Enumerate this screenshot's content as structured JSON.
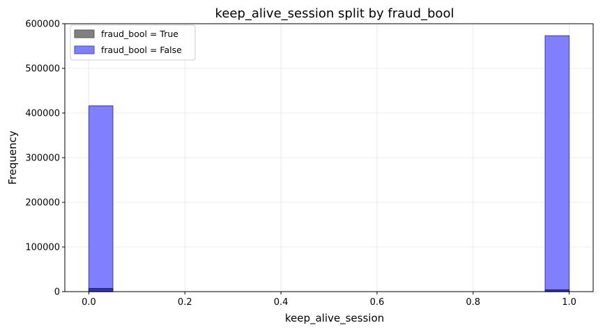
{
  "chart_data": {
    "type": "bar",
    "title": "keep_alive_session split by fraud_bool",
    "xlabel": "keep_alive_session",
    "ylabel": "Frequency",
    "xlim": [
      -0.05,
      1.05
    ],
    "ylim": [
      0,
      600000
    ],
    "x_ticks": [
      0.0,
      0.2,
      0.4,
      0.6,
      0.8,
      1.0
    ],
    "x_tick_labels": [
      "0.0",
      "0.2",
      "0.4",
      "0.6",
      "0.8",
      "1.0"
    ],
    "y_ticks": [
      0,
      100000,
      200000,
      300000,
      400000,
      500000,
      600000
    ],
    "y_tick_labels": [
      "0",
      "100000",
      "200000",
      "300000",
      "400000",
      "500000",
      "600000"
    ],
    "grid": true,
    "legend_position": "top-left",
    "series": [
      {
        "name": "fraud_bool = True",
        "color": "#808080",
        "edge_color": "#555555",
        "bins": [
          {
            "x0": 0.0,
            "x1": 0.05,
            "value": 7000
          },
          {
            "x0": 0.95,
            "x1": 1.0,
            "value": 4000
          }
        ]
      },
      {
        "name": "fraud_bool = False",
        "color": "#8080ff",
        "edge_color": "#4a4aa8",
        "bins": [
          {
            "x0": 0.0,
            "x1": 0.05,
            "value": 416000
          },
          {
            "x0": 0.95,
            "x1": 1.0,
            "value": 573000
          }
        ]
      }
    ]
  }
}
